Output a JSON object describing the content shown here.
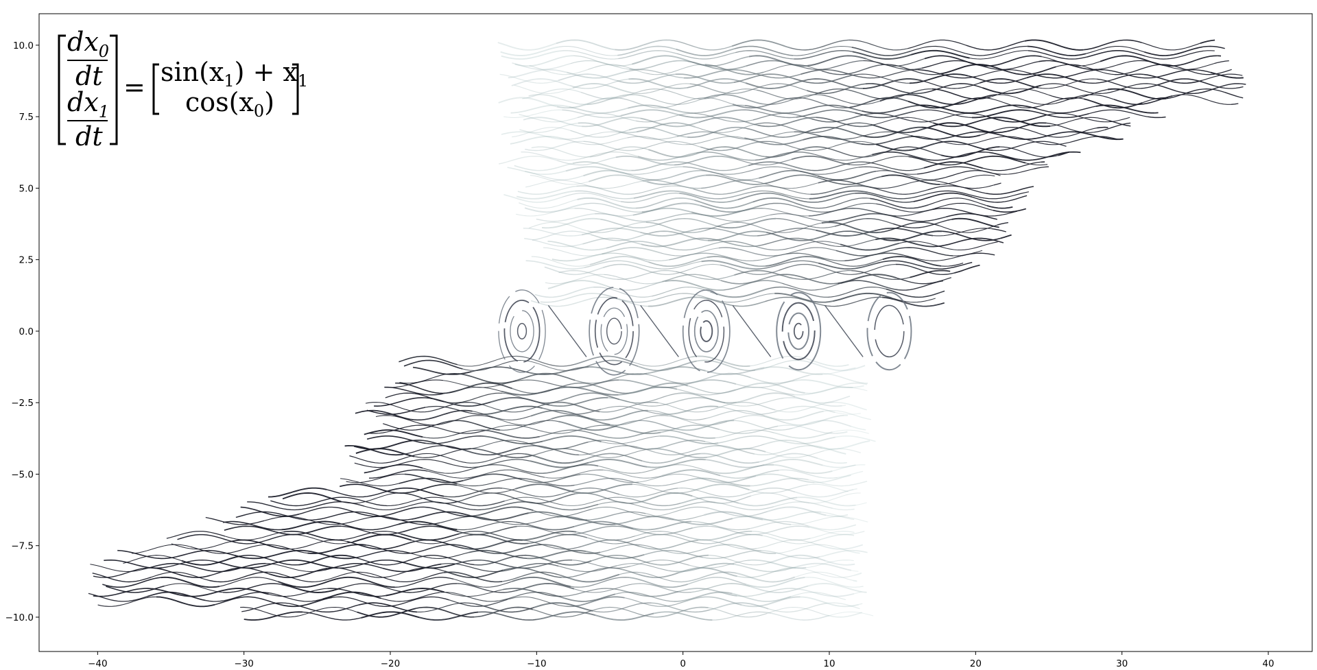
{
  "chart_data": {
    "type": "streamplot",
    "title": "",
    "xlabel": "",
    "ylabel": "",
    "xlim": [
      -44,
      43
    ],
    "ylim": [
      -11.2,
      11.1
    ],
    "grid": false,
    "x_ticks": [
      -40,
      -30,
      -20,
      -10,
      0,
      10,
      20,
      30,
      40
    ],
    "x_tick_labels": [
      "−40",
      "−30",
      "−20",
      "−10",
      "0",
      "10",
      "20",
      "30",
      "40"
    ],
    "y_ticks": [
      10.0,
      7.5,
      5.0,
      2.5,
      0.0,
      -2.5,
      -5.0,
      -7.5,
      -10.0
    ],
    "y_tick_labels": [
      "10.0",
      "7.5",
      "5.0",
      "2.5",
      "0.0",
      "−2.5",
      "−5.0",
      "−7.5",
      "−10.0"
    ],
    "system": {
      "dx0_dt": "sin(x1) + x1",
      "dx1_dt": "cos(x0)"
    },
    "equation": {
      "lhs_top_num": "dx",
      "lhs_top_sub": "0",
      "lhs_top_den": "dt",
      "lhs_bot_num": "dx",
      "lhs_bot_sub": "1",
      "lhs_bot_den": "dt",
      "equals": "=",
      "rhs_top": "sin(x",
      "rhs_top_sub": "1",
      "rhs_top_rest": ") + x",
      "rhs_top_sub2": "1",
      "rhs_bot": "cos(x",
      "rhs_bot_sub": "0",
      "rhs_bot_rest": ")"
    },
    "wavy_rows_upper": [
      {
        "y": 1.2,
        "x_start": -10,
        "x_end": 18
      },
      {
        "y": 1.8,
        "x_start": -9,
        "x_end": 18.5
      },
      {
        "y": 2.3,
        "x_start": -10,
        "x_end": 20
      },
      {
        "y": 2.8,
        "x_start": -9,
        "x_end": 21
      },
      {
        "y": 3.3,
        "x_start": -11,
        "x_end": 22
      },
      {
        "y": 3.8,
        "x_start": -10,
        "x_end": 22
      },
      {
        "y": 4.3,
        "x_start": -11,
        "x_end": 23
      },
      {
        "y": 4.8,
        "x_start": -12,
        "x_end": 23.5
      },
      {
        "y": 5.3,
        "x_start": -11,
        "x_end": 22
      },
      {
        "y": 5.8,
        "x_start": -12,
        "x_end": 25
      },
      {
        "y": 6.3,
        "x_start": -11,
        "x_end": 27
      },
      {
        "y": 6.8,
        "x_start": -12,
        "x_end": 30
      },
      {
        "y": 7.3,
        "x_start": -11,
        "x_end": 31
      },
      {
        "y": 7.8,
        "x_start": -12,
        "x_end": 33
      },
      {
        "y": 8.3,
        "x_start": -11,
        "x_end": 38
      },
      {
        "y": 8.8,
        "x_start": -12,
        "x_end": 39
      },
      {
        "y": 9.3,
        "x_start": -11,
        "x_end": 37
      },
      {
        "y": 9.8,
        "x_start": -12,
        "x_end": 37
      }
    ],
    "wavy_rows_lower": [
      {
        "y": -1.2,
        "x_start": -19,
        "x_end": 12
      },
      {
        "y": -1.8,
        "x_start": -20,
        "x_end": 12
      },
      {
        "y": -2.3,
        "x_start": -21,
        "x_end": 12
      },
      {
        "y": -2.8,
        "x_start": -22,
        "x_end": 12.5
      },
      {
        "y": -3.3,
        "x_start": -21,
        "x_end": 12
      },
      {
        "y": -3.8,
        "x_start": -22,
        "x_end": 12.5
      },
      {
        "y": -4.3,
        "x_start": -23,
        "x_end": 12
      },
      {
        "y": -4.8,
        "x_start": -22,
        "x_end": 12.5
      },
      {
        "y": -5.3,
        "x_start": -23,
        "x_end": 12
      },
      {
        "y": -5.8,
        "x_start": -28,
        "x_end": 12.5
      },
      {
        "y": -6.3,
        "x_start": -30,
        "x_end": 12
      },
      {
        "y": -6.8,
        "x_start": -32,
        "x_end": 12.5
      },
      {
        "y": -7.3,
        "x_start": -35,
        "x_end": 12
      },
      {
        "y": -7.8,
        "x_start": -38,
        "x_end": 12.5
      },
      {
        "y": -8.3,
        "x_start": -40,
        "x_end": 12
      },
      {
        "y": -8.8,
        "x_start": -40,
        "x_end": 12.5
      },
      {
        "y": -9.3,
        "x_start": -40,
        "x_end": 12
      },
      {
        "y": -9.8,
        "x_start": -30,
        "x_end": 12.5
      }
    ],
    "closed_orbits": [
      {
        "cx": -11.0,
        "cy": 0.0,
        "radii": [
          0.3,
          0.8,
          1.2,
          1.6
        ]
      },
      {
        "cx": -4.7,
        "cy": 0.0,
        "radii": [
          0.5,
          0.9,
          1.3,
          1.7
        ]
      },
      {
        "cx": 1.6,
        "cy": 0.0,
        "radii": [
          0.4,
          0.8,
          1.2,
          1.6
        ]
      },
      {
        "cx": 7.9,
        "cy": 0.0,
        "radii": [
          0.3,
          0.7,
          1.1,
          1.5
        ]
      },
      {
        "cx": 14.1,
        "cy": 0.0,
        "radii": [
          1.0,
          1.5
        ]
      }
    ],
    "colors": {
      "dark_line": "#1c1f2a",
      "mid_line": "#55606e",
      "light_line": "#a8c3c3",
      "axis": "#000000"
    }
  }
}
